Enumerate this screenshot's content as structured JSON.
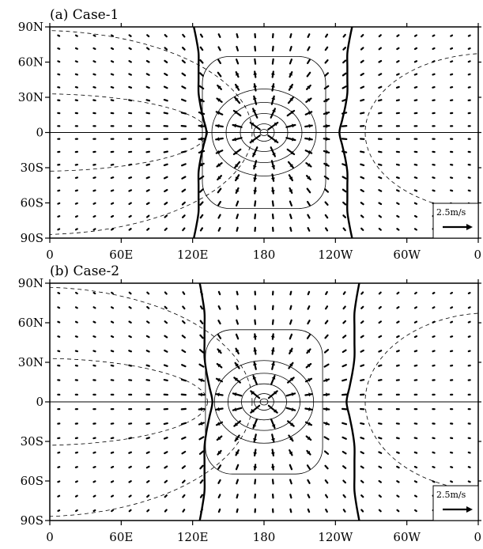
{
  "chart_data": [
    {
      "type": "vector-contour",
      "title": "(a) Case-1",
      "xlabel": "",
      "ylabel": "",
      "x_ticks": [
        "0",
        "60E",
        "120E",
        "180",
        "120W",
        "60W",
        "0"
      ],
      "y_ticks": [
        "90N",
        "60N",
        "30N",
        "0",
        "30S",
        "60S",
        "90S"
      ],
      "xlim": [
        0,
        360
      ],
      "ylim": [
        -90,
        90
      ],
      "reference_vector_label": "2.5m/s",
      "source_center": [
        180,
        0
      ],
      "zero_contour_longitudes": [
        125,
        250
      ],
      "grid": false
    },
    {
      "type": "vector-contour",
      "title": "(b) Case-2",
      "xlabel": "",
      "ylabel": "",
      "x_ticks": [
        "0",
        "60E",
        "120E",
        "180",
        "120W",
        "60W",
        "0"
      ],
      "y_ticks": [
        "90N",
        "60N",
        "30N",
        "0",
        "30S",
        "60S",
        "90S"
      ],
      "xlim": [
        0,
        360
      ],
      "ylim": [
        -90,
        90
      ],
      "reference_vector_label": "2.5m/s",
      "source_center": [
        180,
        0
      ],
      "zero_contour_longitudes": [
        130,
        256
      ],
      "grid": false
    }
  ]
}
